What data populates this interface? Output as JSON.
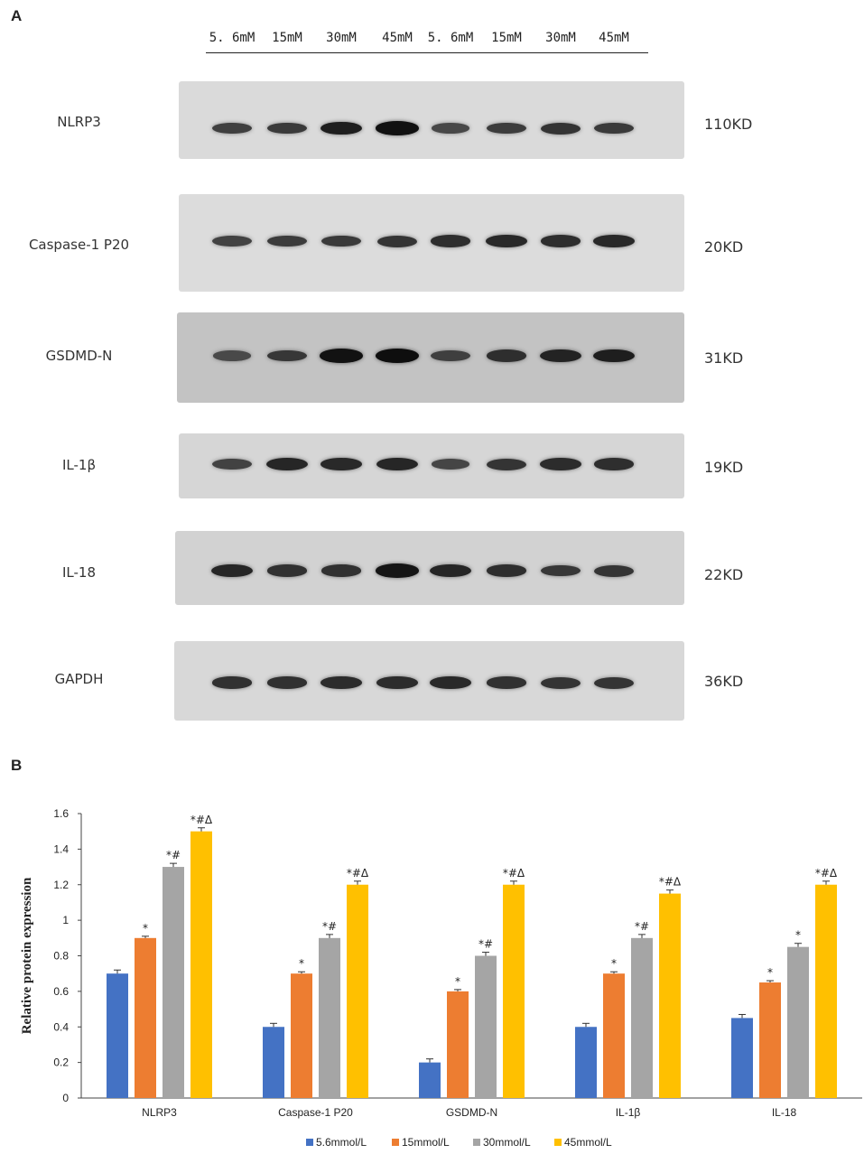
{
  "panel_a": {
    "letter": "A",
    "lanes": [
      "5. 6mM",
      "15mM",
      "30mM",
      "45mM",
      "5. 6mM",
      "15mM",
      "30mM",
      "45mM"
    ],
    "blots": [
      {
        "protein": "NLRP3",
        "size": "110KD",
        "bg": "#dadada",
        "intensity": [
          0.62,
          0.66,
          0.86,
          0.95,
          0.56,
          0.64,
          0.7,
          0.66
        ]
      },
      {
        "protein": "Caspase-1 P20",
        "size": "20KD",
        "bg": "#dcdcdc",
        "intensity": [
          0.6,
          0.64,
          0.66,
          0.7,
          0.74,
          0.78,
          0.74,
          0.78
        ]
      },
      {
        "protein": "GSDMD-N",
        "size": "31KD",
        "bg": "#c3c3c3",
        "intensity": [
          0.55,
          0.68,
          0.94,
          0.97,
          0.62,
          0.74,
          0.82,
          0.86
        ]
      },
      {
        "protein": "IL-1β",
        "size": "19KD",
        "bg": "#d6d6d6",
        "intensity": [
          0.6,
          0.8,
          0.78,
          0.8,
          0.58,
          0.7,
          0.76,
          0.74
        ]
      },
      {
        "protein": "IL-18",
        "size": "22KD",
        "bg": "#d2d2d2",
        "intensity": [
          0.8,
          0.72,
          0.72,
          0.92,
          0.8,
          0.74,
          0.68,
          0.7
        ]
      },
      {
        "protein": "GAPDH",
        "size": "36KD",
        "bg": "#d8d8d8",
        "intensity": [
          0.72,
          0.72,
          0.76,
          0.76,
          0.78,
          0.72,
          0.7,
          0.7
        ]
      }
    ]
  },
  "panel_b": {
    "letter": "B"
  },
  "chart_data": {
    "type": "bar",
    "title": "",
    "xlabel": "",
    "ylabel": "Relative protein expression",
    "ylim": [
      0,
      1.6
    ],
    "yticks": [
      "0",
      "0.2",
      "0.4",
      "0.6",
      "0.8",
      "1",
      "1.2",
      "1.4",
      "1.6"
    ],
    "categories": [
      "NLRP3",
      "Caspase-1 P20",
      "GSDMD-N",
      "IL-1β",
      "IL-18"
    ],
    "legend_position": "bottom",
    "grid": false,
    "series": [
      {
        "name": "5.6mmol/L",
        "color": "#4472c4",
        "values": [
          0.7,
          0.4,
          0.2,
          0.4,
          0.45
        ],
        "errors": [
          0.02,
          0.02,
          0.02,
          0.02,
          0.02
        ],
        "annotations": [
          "",
          "",
          "",
          "",
          ""
        ]
      },
      {
        "name": "15mmol/L",
        "color": "#ed7d31",
        "values": [
          0.9,
          0.7,
          0.6,
          0.7,
          0.65
        ],
        "errors": [
          0.01,
          0.01,
          0.01,
          0.01,
          0.01
        ],
        "annotations": [
          "*",
          "*",
          "*",
          "*",
          "*"
        ]
      },
      {
        "name": "30mmol/L",
        "color": "#a5a5a5",
        "values": [
          1.3,
          0.9,
          0.8,
          0.9,
          0.85
        ],
        "errors": [
          0.02,
          0.02,
          0.02,
          0.02,
          0.02
        ],
        "annotations": [
          "*#",
          "*#",
          "*#",
          "*#",
          "*"
        ]
      },
      {
        "name": "45mmol/L",
        "color": "#ffc000",
        "values": [
          1.5,
          1.2,
          1.2,
          1.15,
          1.2
        ],
        "errors": [
          0.02,
          0.02,
          0.02,
          0.02,
          0.02
        ],
        "annotations": [
          "*#Δ",
          "*#Δ",
          "*#Δ",
          "*#Δ",
          "*#Δ"
        ]
      }
    ]
  }
}
